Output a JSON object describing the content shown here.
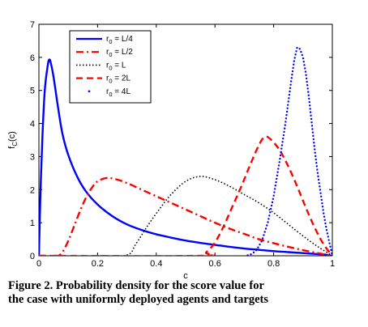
{
  "chart_data": {
    "type": "line",
    "xlabel": "c",
    "ylabel": "f_C(c)",
    "xlim": [
      0,
      1
    ],
    "ylim": [
      0,
      7
    ],
    "xticks": [
      "0",
      "0.2",
      "0.4",
      "0.6",
      "0.8",
      "1"
    ],
    "yticks": [
      "0",
      "1",
      "2",
      "3",
      "4",
      "5",
      "6",
      "7"
    ],
    "grid": false,
    "legend_position": "top-left",
    "series": [
      {
        "name": "r0 = L/4",
        "color": "#0000ff",
        "style": "solid",
        "points": [
          [
            0,
            0
          ],
          [
            0.005,
            1.8
          ],
          [
            0.012,
            3.6
          ],
          [
            0.02,
            5.0
          ],
          [
            0.03,
            5.75
          ],
          [
            0.035,
            5.93
          ],
          [
            0.04,
            5.85
          ],
          [
            0.05,
            5.4
          ],
          [
            0.065,
            4.5
          ],
          [
            0.08,
            3.7
          ],
          [
            0.1,
            3.05
          ],
          [
            0.13,
            2.4
          ],
          [
            0.16,
            1.95
          ],
          [
            0.2,
            1.55
          ],
          [
            0.25,
            1.2
          ],
          [
            0.3,
            0.95
          ],
          [
            0.35,
            0.78
          ],
          [
            0.4,
            0.65
          ],
          [
            0.45,
            0.55
          ],
          [
            0.5,
            0.46
          ],
          [
            0.55,
            0.39
          ],
          [
            0.6,
            0.33
          ],
          [
            0.65,
            0.27
          ],
          [
            0.7,
            0.22
          ],
          [
            0.75,
            0.18
          ],
          [
            0.8,
            0.14
          ],
          [
            0.85,
            0.11
          ],
          [
            0.9,
            0.08
          ],
          [
            0.95,
            0.05
          ],
          [
            0.98,
            0.03
          ],
          [
            1.0,
            0.0
          ]
        ]
      },
      {
        "name": "r0 = L/2",
        "color": "#ff0000",
        "style": "dashdot",
        "points": [
          [
            0,
            0
          ],
          [
            0.05,
            0
          ],
          [
            0.075,
            0.05
          ],
          [
            0.1,
            0.45
          ],
          [
            0.12,
            0.9
          ],
          [
            0.14,
            1.35
          ],
          [
            0.16,
            1.75
          ],
          [
            0.18,
            2.05
          ],
          [
            0.2,
            2.25
          ],
          [
            0.23,
            2.35
          ],
          [
            0.26,
            2.32
          ],
          [
            0.3,
            2.2
          ],
          [
            0.35,
            2.0
          ],
          [
            0.4,
            1.8
          ],
          [
            0.45,
            1.6
          ],
          [
            0.5,
            1.4
          ],
          [
            0.55,
            1.2
          ],
          [
            0.6,
            1.0
          ],
          [
            0.65,
            0.82
          ],
          [
            0.7,
            0.66
          ],
          [
            0.75,
            0.5
          ],
          [
            0.8,
            0.38
          ],
          [
            0.85,
            0.27
          ],
          [
            0.9,
            0.17
          ],
          [
            0.95,
            0.08
          ],
          [
            1.0,
            0.0
          ]
        ]
      },
      {
        "name": "r0 = L",
        "color": "#000000",
        "style": "dotted",
        "points": [
          [
            0.2,
            0
          ],
          [
            0.3,
            0.02
          ],
          [
            0.33,
            0.35
          ],
          [
            0.37,
            0.9
          ],
          [
            0.41,
            1.4
          ],
          [
            0.45,
            1.85
          ],
          [
            0.5,
            2.25
          ],
          [
            0.55,
            2.4
          ],
          [
            0.6,
            2.3
          ],
          [
            0.65,
            2.1
          ],
          [
            0.7,
            1.85
          ],
          [
            0.75,
            1.6
          ],
          [
            0.8,
            1.3
          ],
          [
            0.85,
            0.95
          ],
          [
            0.9,
            0.6
          ],
          [
            0.95,
            0.28
          ],
          [
            1.0,
            0.0
          ]
        ]
      },
      {
        "name": "r0 = 2L",
        "color": "#ff0000",
        "style": "dashed",
        "points": [
          [
            0,
            0
          ],
          [
            0.55,
            0
          ],
          [
            0.57,
            0.1
          ],
          [
            0.6,
            0.4
          ],
          [
            0.63,
            0.9
          ],
          [
            0.66,
            1.5
          ],
          [
            0.69,
            2.1
          ],
          [
            0.72,
            2.75
          ],
          [
            0.75,
            3.35
          ],
          [
            0.77,
            3.6
          ],
          [
            0.79,
            3.52
          ],
          [
            0.82,
            3.2
          ],
          [
            0.85,
            2.7
          ],
          [
            0.88,
            2.1
          ],
          [
            0.91,
            1.45
          ],
          [
            0.94,
            0.85
          ],
          [
            0.97,
            0.35
          ],
          [
            1.0,
            0.0
          ]
        ]
      },
      {
        "name": "r0 = 4L",
        "color": "#0000ff",
        "style": "markers",
        "points": [
          [
            0.7,
            0
          ],
          [
            0.72,
            0.03
          ],
          [
            0.74,
            0.15
          ],
          [
            0.76,
            0.45
          ],
          [
            0.78,
            1.0
          ],
          [
            0.8,
            1.8
          ],
          [
            0.82,
            2.85
          ],
          [
            0.84,
            4.0
          ],
          [
            0.86,
            5.3
          ],
          [
            0.87,
            5.9
          ],
          [
            0.88,
            6.3
          ],
          [
            0.89,
            6.25
          ],
          [
            0.9,
            6.0
          ],
          [
            0.91,
            5.5
          ],
          [
            0.92,
            4.8
          ],
          [
            0.93,
            4.0
          ],
          [
            0.94,
            3.2
          ],
          [
            0.95,
            2.5
          ],
          [
            0.96,
            1.9
          ],
          [
            0.97,
            1.3
          ],
          [
            0.98,
            0.8
          ],
          [
            0.99,
            0.4
          ],
          [
            1.0,
            0.0
          ]
        ]
      }
    ]
  },
  "legend": {
    "items": [
      {
        "prefix": "r",
        "subscript": "0",
        "suffix": " = L/4"
      },
      {
        "prefix": "r",
        "subscript": "0",
        "suffix": " = L/2"
      },
      {
        "prefix": "r",
        "subscript": "0",
        "suffix": " = L"
      },
      {
        "prefix": "r",
        "subscript": "0",
        "suffix": " = 2L"
      },
      {
        "prefix": "r",
        "subscript": "0",
        "suffix": " = 4L"
      }
    ]
  },
  "axis_labels": {
    "x": "c",
    "y_main": "f",
    "y_sub": "C",
    "y_tail": "(c)"
  },
  "caption": {
    "line1": "Figure 2.  Probability density for the score value for",
    "line2": "the case with uniformly deployed agents and targets"
  }
}
